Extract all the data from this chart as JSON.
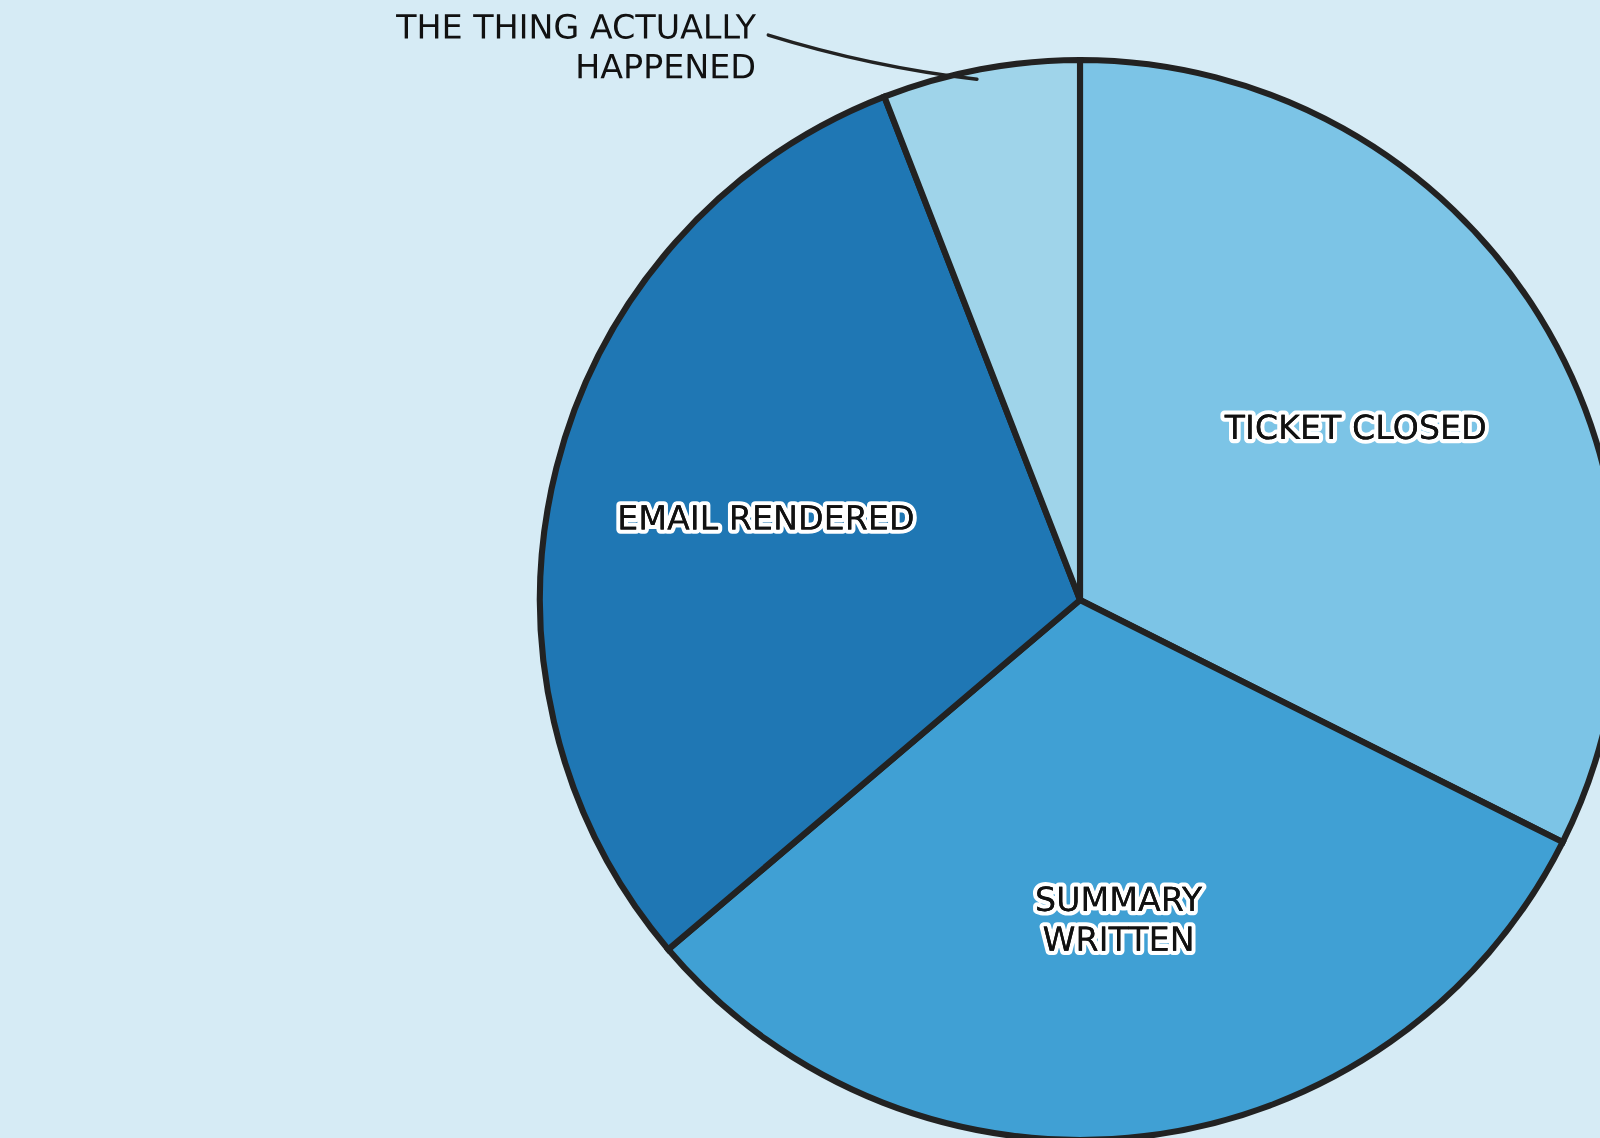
{
  "chart_data": {
    "type": "pie",
    "categories": [
      "TICKET CLOSED",
      "SUMMARY\nWRITTEN",
      "EMAIL RENDERED",
      "THE THING ACTUALLY\nHAPPENED"
    ],
    "values": [
      32.4,
      31.4,
      30.3,
      5.9
    ],
    "colors": [
      "#7cc4e6",
      "#40a0d4",
      "#1f77b4",
      "#9fd4ea"
    ],
    "legend": false
  }
}
